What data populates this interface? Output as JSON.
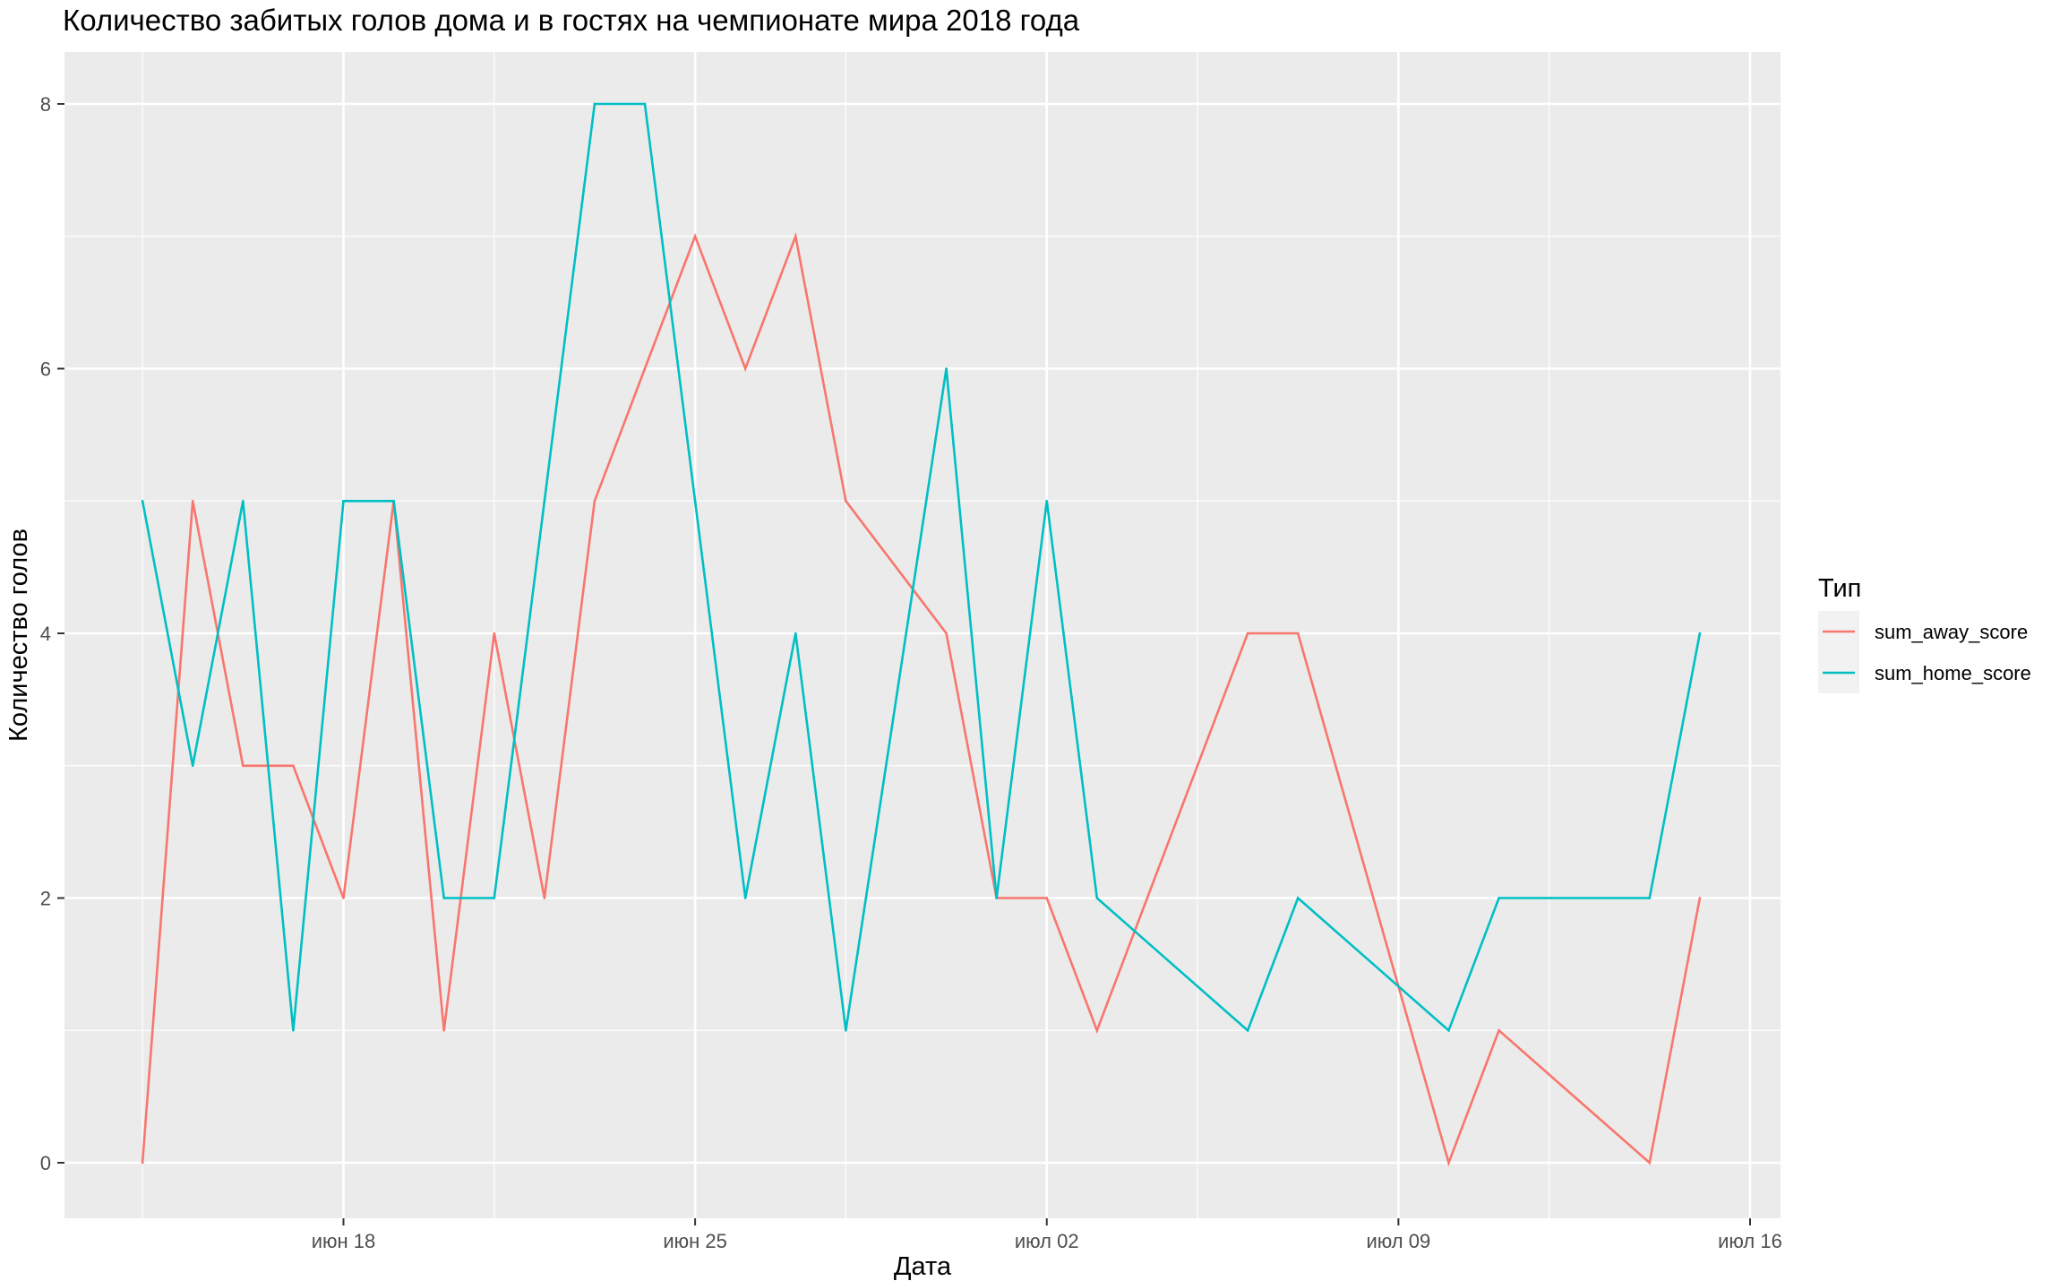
{
  "chart_data": {
    "type": "line",
    "title": "Количество забитых голов дома и в гостях на чемпионате мира 2018 года",
    "xlabel": "Дата",
    "ylabel": "Количество голов",
    "x": [
      "2018-06-14",
      "2018-06-15",
      "2018-06-16",
      "2018-06-17",
      "2018-06-18",
      "2018-06-19",
      "2018-06-20",
      "2018-06-21",
      "2018-06-22",
      "2018-06-23",
      "2018-06-24",
      "2018-06-25",
      "2018-06-26",
      "2018-06-27",
      "2018-06-28",
      "2018-06-30",
      "2018-07-01",
      "2018-07-02",
      "2018-07-03",
      "2018-07-06",
      "2018-07-07",
      "2018-07-10",
      "2018-07-11",
      "2018-07-14",
      "2018-07-15"
    ],
    "series": [
      {
        "name": "sum_away_score",
        "color": "#F8766D",
        "values": [
          0,
          5,
          3,
          3,
          2,
          5,
          1,
          4,
          2,
          5,
          6,
          7,
          6,
          7,
          5,
          4,
          2,
          2,
          1,
          4,
          4,
          0,
          1,
          0,
          2
        ]
      },
      {
        "name": "sum_home_score",
        "color": "#00BFC4",
        "values": [
          5,
          3,
          5,
          1,
          5,
          5,
          2,
          2,
          5,
          8,
          8,
          5,
          2,
          4,
          1,
          6,
          2,
          5,
          2,
          1,
          2,
          1,
          2,
          2,
          4
        ]
      }
    ],
    "xlim": [
      "2018-06-12",
      "2018-07-16"
    ],
    "ylim": [
      -0.4,
      8.4
    ],
    "x_ticks": [
      {
        "date": "2018-06-18",
        "label": "июн 18"
      },
      {
        "date": "2018-06-25",
        "label": "июн 25"
      },
      {
        "date": "2018-07-02",
        "label": "июл 02"
      },
      {
        "date": "2018-07-09",
        "label": "июл 09"
      },
      {
        "date": "2018-07-16",
        "label": "июл 16"
      }
    ],
    "x_minor_ticks": [
      "2018-06-14",
      "2018-06-21",
      "2018-06-28",
      "2018-07-05",
      "2018-07-12"
    ],
    "y_ticks": [
      0,
      2,
      4,
      6,
      8
    ],
    "y_minor_ticks": [
      1,
      3,
      5,
      7
    ],
    "grid": true,
    "panel_background": "#EBEBEB",
    "legend": {
      "title": "Тип",
      "placement": "right"
    }
  }
}
